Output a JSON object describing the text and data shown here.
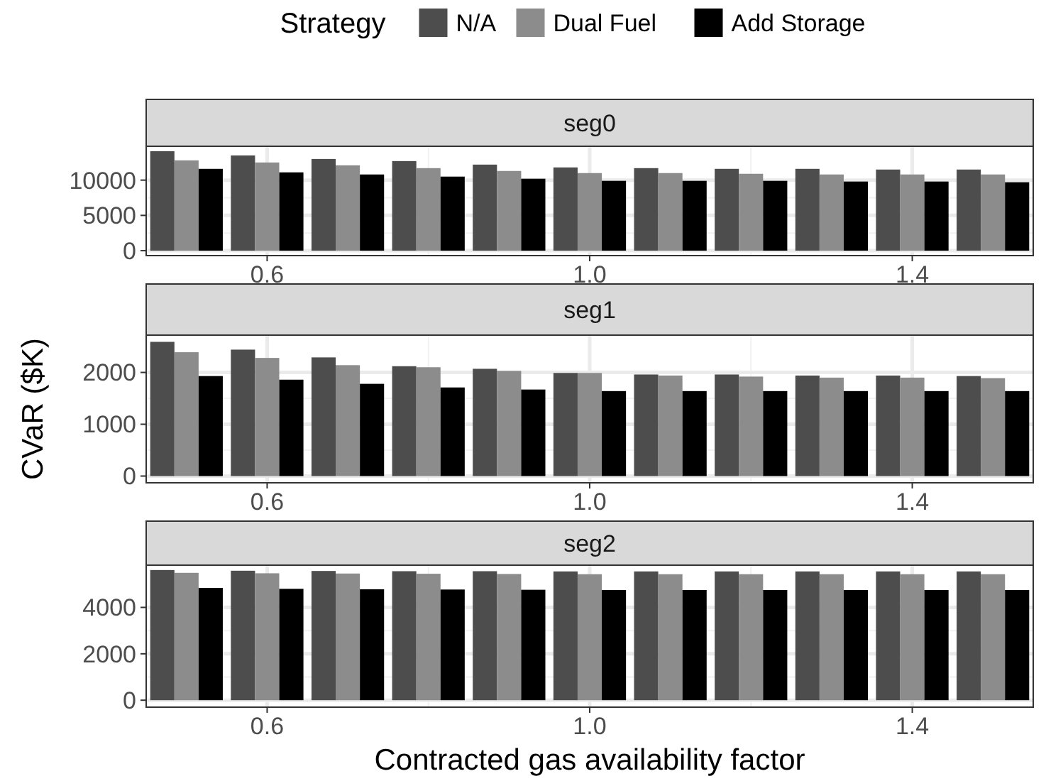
{
  "chart_data": [
    {
      "type": "bar",
      "title": "seg0",
      "legend": "top",
      "legend_title": "Strategy",
      "grid": true,
      "x": [
        0.5,
        0.6,
        0.7,
        0.8,
        0.9,
        1.0,
        1.1,
        1.2,
        1.3,
        1.4,
        1.5
      ],
      "xlim": [
        0.45,
        1.55
      ],
      "xticks": [
        {
          "value": 0.6,
          "label": "0.6"
        },
        {
          "value": 1.0,
          "label": "1.0"
        },
        {
          "value": 1.4,
          "label": "1.4"
        }
      ],
      "ylim": [
        -700,
        14800
      ],
      "yticks": [
        0,
        5000,
        10000
      ],
      "series": [
        {
          "name": "N/A",
          "color": "#4d4d4d",
          "values": [
            14100,
            13500,
            13000,
            12700,
            12200,
            11800,
            11700,
            11600,
            11600,
            11500,
            11500
          ]
        },
        {
          "name": "Dual Fuel",
          "color": "#8c8c8c",
          "values": [
            12800,
            12500,
            12100,
            11700,
            11300,
            11000,
            11000,
            10900,
            10800,
            10800,
            10800
          ]
        },
        {
          "name": "Add Storage",
          "color": "#000000",
          "values": [
            11600,
            11100,
            10800,
            10500,
            10200,
            9900,
            9900,
            9900,
            9800,
            9800,
            9700
          ]
        }
      ]
    },
    {
      "type": "bar",
      "title": "seg1",
      "ylabel": "CVaR ($K)",
      "grid": true,
      "x": [
        0.5,
        0.6,
        0.7,
        0.8,
        0.9,
        1.0,
        1.1,
        1.2,
        1.3,
        1.4,
        1.5
      ],
      "xlim": [
        0.45,
        1.55
      ],
      "xticks": [
        {
          "value": 0.6,
          "label": "0.6"
        },
        {
          "value": 1.0,
          "label": "1.0"
        },
        {
          "value": 1.4,
          "label": "1.4"
        }
      ],
      "ylim": [
        -130,
        2720
      ],
      "yticks": [
        0,
        1000,
        2000
      ],
      "series": [
        {
          "color": "#4d4d4d",
          "values": [
            2590,
            2440,
            2290,
            2120,
            2070,
            1990,
            1960,
            1960,
            1940,
            1940,
            1930
          ]
        },
        {
          "color": "#8c8c8c",
          "values": [
            2390,
            2280,
            2140,
            2100,
            2030,
            1990,
            1940,
            1920,
            1900,
            1900,
            1890
          ]
        },
        {
          "color": "#000000",
          "values": [
            1930,
            1860,
            1780,
            1710,
            1670,
            1640,
            1640,
            1640,
            1640,
            1640,
            1640
          ]
        }
      ]
    },
    {
      "type": "bar",
      "title": "seg2",
      "xlabel": "Contracted gas availability factor",
      "grid": true,
      "x": [
        0.5,
        0.6,
        0.7,
        0.8,
        0.9,
        1.0,
        1.1,
        1.2,
        1.3,
        1.4,
        1.5
      ],
      "xlim": [
        0.45,
        1.55
      ],
      "xticks": [
        {
          "value": 0.6,
          "label": "0.6"
        },
        {
          "value": 1.0,
          "label": "1.0"
        },
        {
          "value": 1.4,
          "label": "1.4"
        }
      ],
      "ylim": [
        -300,
        5820
      ],
      "yticks": [
        0,
        2000,
        4000
      ],
      "series": [
        {
          "color": "#4d4d4d",
          "values": [
            5610,
            5580,
            5570,
            5560,
            5560,
            5550,
            5550,
            5550,
            5550,
            5550,
            5550
          ]
        },
        {
          "color": "#8c8c8c",
          "values": [
            5490,
            5470,
            5460,
            5450,
            5440,
            5430,
            5430,
            5430,
            5430,
            5430,
            5430
          ]
        },
        {
          "color": "#000000",
          "values": [
            4840,
            4800,
            4780,
            4770,
            4760,
            4750,
            4750,
            4750,
            4750,
            4750,
            4750
          ]
        }
      ]
    }
  ]
}
